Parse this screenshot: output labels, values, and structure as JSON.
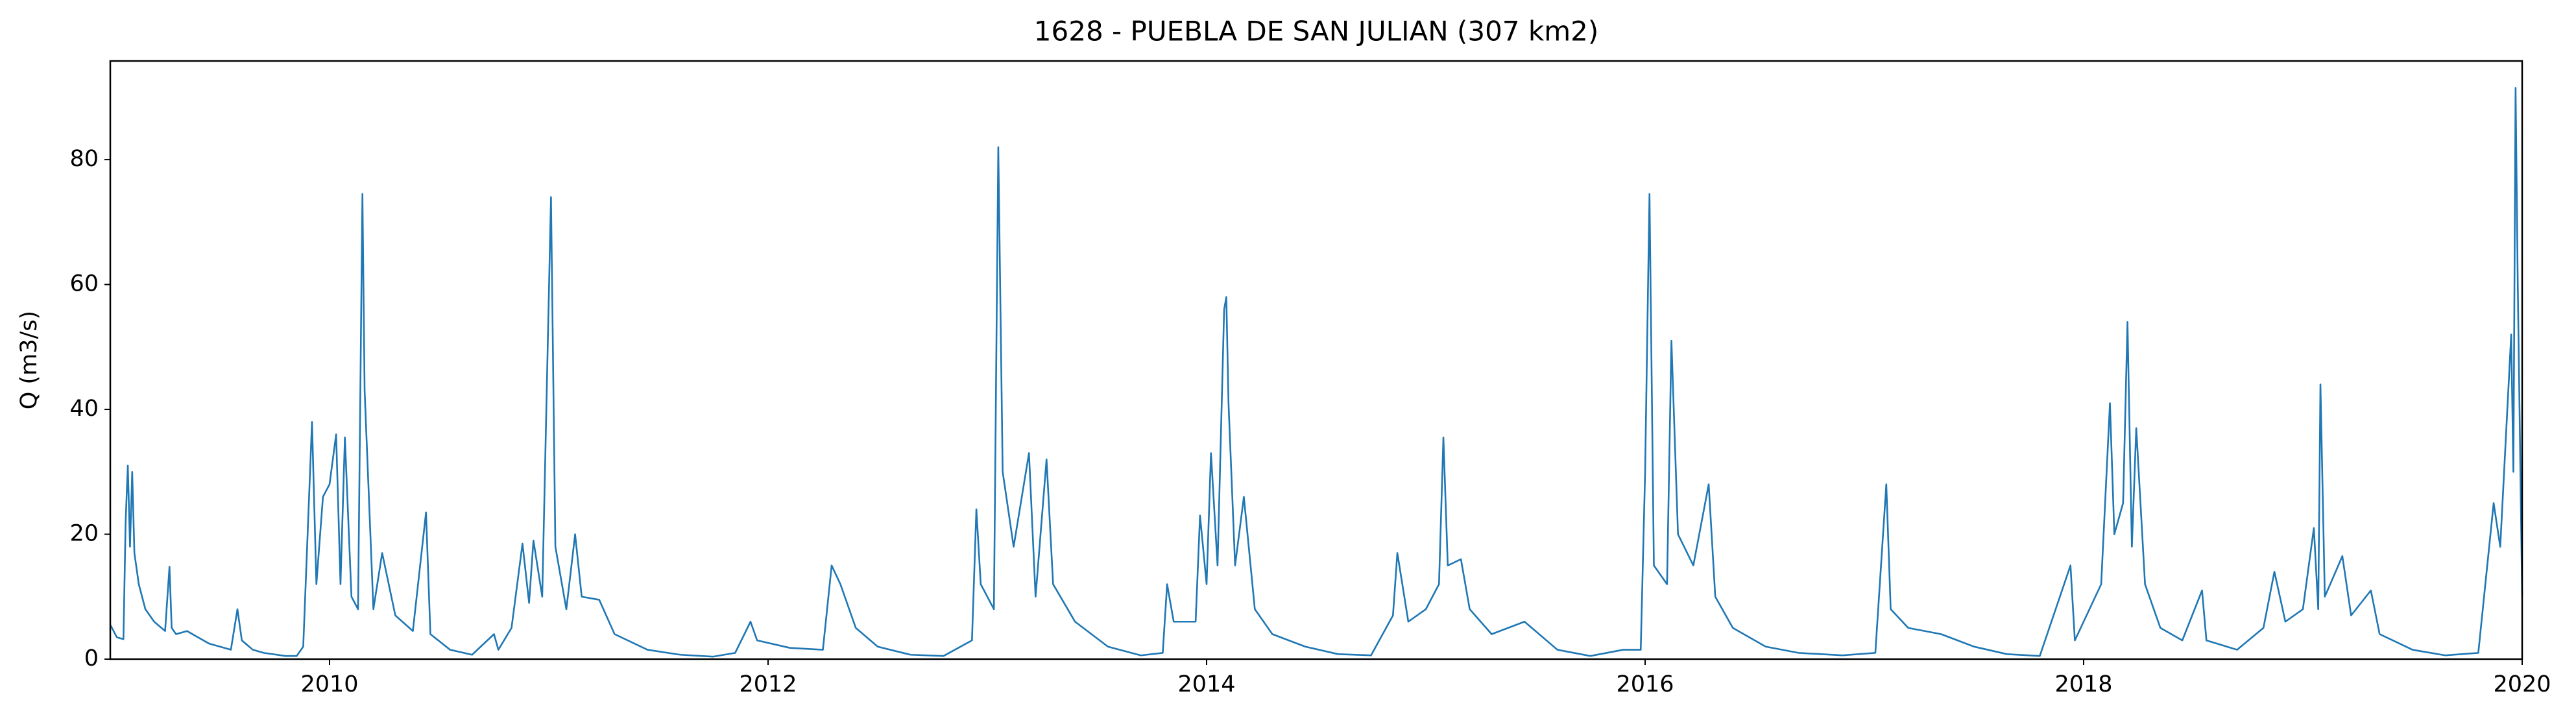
{
  "chart_data": {
    "type": "line",
    "title": "1628 - PUEBLA DE SAN JULIAN (307 km2)",
    "y_label": "Q (m3/s)",
    "x": [
      2009.0,
      2009.03,
      2009.06,
      2009.07,
      2009.08,
      2009.09,
      2009.1,
      2009.11,
      2009.13,
      2009.16,
      2009.2,
      2009.25,
      2009.27,
      2009.28,
      2009.3,
      2009.35,
      2009.4,
      2009.45,
      2009.5,
      2009.55,
      2009.58,
      2009.6,
      2009.65,
      2009.7,
      2009.8,
      2009.85,
      2009.88,
      2009.9,
      2009.92,
      2009.94,
      2009.97,
      2010.0,
      2010.03,
      2010.05,
      2010.07,
      2010.1,
      2010.13,
      2010.15,
      2010.16,
      2010.2,
      2010.24,
      2010.3,
      2010.38,
      2010.44,
      2010.46,
      2010.55,
      2010.65,
      2010.75,
      2010.77,
      2010.83,
      2010.88,
      2010.91,
      2010.93,
      2010.97,
      2011.01,
      2011.03,
      2011.08,
      2011.12,
      2011.15,
      2011.23,
      2011.3,
      2011.45,
      2011.6,
      2011.75,
      2011.85,
      2011.92,
      2011.95,
      2012.1,
      2012.25,
      2012.29,
      2012.33,
      2012.4,
      2012.5,
      2012.65,
      2012.8,
      2012.93,
      2012.95,
      2012.97,
      2013.03,
      2013.05,
      2013.07,
      2013.12,
      2013.19,
      2013.22,
      2013.27,
      2013.3,
      2013.4,
      2013.55,
      2013.7,
      2013.8,
      2013.82,
      2013.85,
      2013.95,
      2013.97,
      2014.0,
      2014.02,
      2014.05,
      2014.08,
      2014.09,
      2014.1,
      2014.13,
      2014.17,
      2014.22,
      2014.3,
      2014.45,
      2014.6,
      2014.75,
      2014.85,
      2014.87,
      2014.92,
      2015.0,
      2015.06,
      2015.08,
      2015.1,
      2015.16,
      2015.2,
      2015.3,
      2015.45,
      2015.6,
      2015.75,
      2015.9,
      2015.98,
      2016.0,
      2016.02,
      2016.04,
      2016.1,
      2016.12,
      2016.15,
      2016.22,
      2016.29,
      2016.32,
      2016.4,
      2016.55,
      2016.7,
      2016.9,
      2017.05,
      2017.1,
      2017.12,
      2017.2,
      2017.35,
      2017.5,
      2017.65,
      2017.8,
      2017.94,
      2017.96,
      2018.0,
      2018.08,
      2018.12,
      2018.14,
      2018.18,
      2018.2,
      2018.22,
      2018.24,
      2018.28,
      2018.35,
      2018.45,
      2018.54,
      2018.56,
      2018.7,
      2018.82,
      2018.87,
      2018.92,
      2019.0,
      2019.05,
      2019.07,
      2019.08,
      2019.1,
      2019.18,
      2019.22,
      2019.31,
      2019.35,
      2019.5,
      2019.65,
      2019.8,
      2019.87,
      2019.9,
      2019.95,
      2019.96,
      2019.97,
      2019.98,
      2020.0
    ],
    "series": [
      {
        "color": "#1f77b4",
        "values": [
          5.5,
          3.5,
          3.2,
          22,
          31,
          18,
          30,
          17,
          12,
          8,
          6,
          4.5,
          14.8,
          5,
          4,
          4.5,
          3.5,
          2.5,
          2,
          1.5,
          8,
          3,
          1.5,
          1,
          0.5,
          0.5,
          2,
          20,
          38,
          12,
          26,
          28,
          36,
          12,
          35.5,
          10,
          8,
          74.5,
          43,
          8,
          17,
          7,
          4.5,
          23.5,
          4,
          1.5,
          0.7,
          4,
          1.5,
          5,
          18.5,
          9,
          19,
          10,
          74,
          18,
          8,
          20,
          10,
          9.5,
          4,
          1.5,
          0.7,
          0.4,
          1,
          6,
          3,
          1.8,
          1.5,
          15,
          12,
          5,
          2,
          0.7,
          0.5,
          3,
          24,
          12,
          8,
          82,
          30,
          18,
          33,
          10,
          32,
          12,
          6,
          2,
          0.6,
          1,
          12,
          6,
          6,
          23,
          12,
          33,
          15,
          56,
          58,
          41,
          15,
          26,
          8,
          4,
          2,
          0.8,
          0.6,
          7,
          17,
          6,
          8,
          12,
          35.5,
          15,
          16,
          8,
          4,
          6,
          1.5,
          0.5,
          1.5,
          1.5,
          30,
          74.5,
          15,
          12,
          51,
          20,
          15,
          28,
          10,
          5,
          2,
          1,
          0.6,
          1,
          28,
          8,
          5,
          4,
          2,
          0.8,
          0.5,
          15,
          3,
          6,
          12,
          41,
          20,
          25,
          54,
          18,
          37,
          12,
          5,
          3,
          11,
          3,
          1.5,
          5,
          14,
          6,
          8,
          21,
          8,
          44,
          10,
          16.5,
          7,
          11,
          4,
          1.5,
          0.6,
          1,
          25,
          18,
          52,
          30,
          91.5,
          60,
          10
        ]
      }
    ],
    "xlim": [
      2009,
      2020
    ],
    "xticks": [
      2010,
      2012,
      2014,
      2016,
      2018,
      2020
    ],
    "ylim": [
      0,
      95.8
    ],
    "yticks": [
      0,
      20,
      40,
      60,
      80
    ],
    "grid": false
  }
}
